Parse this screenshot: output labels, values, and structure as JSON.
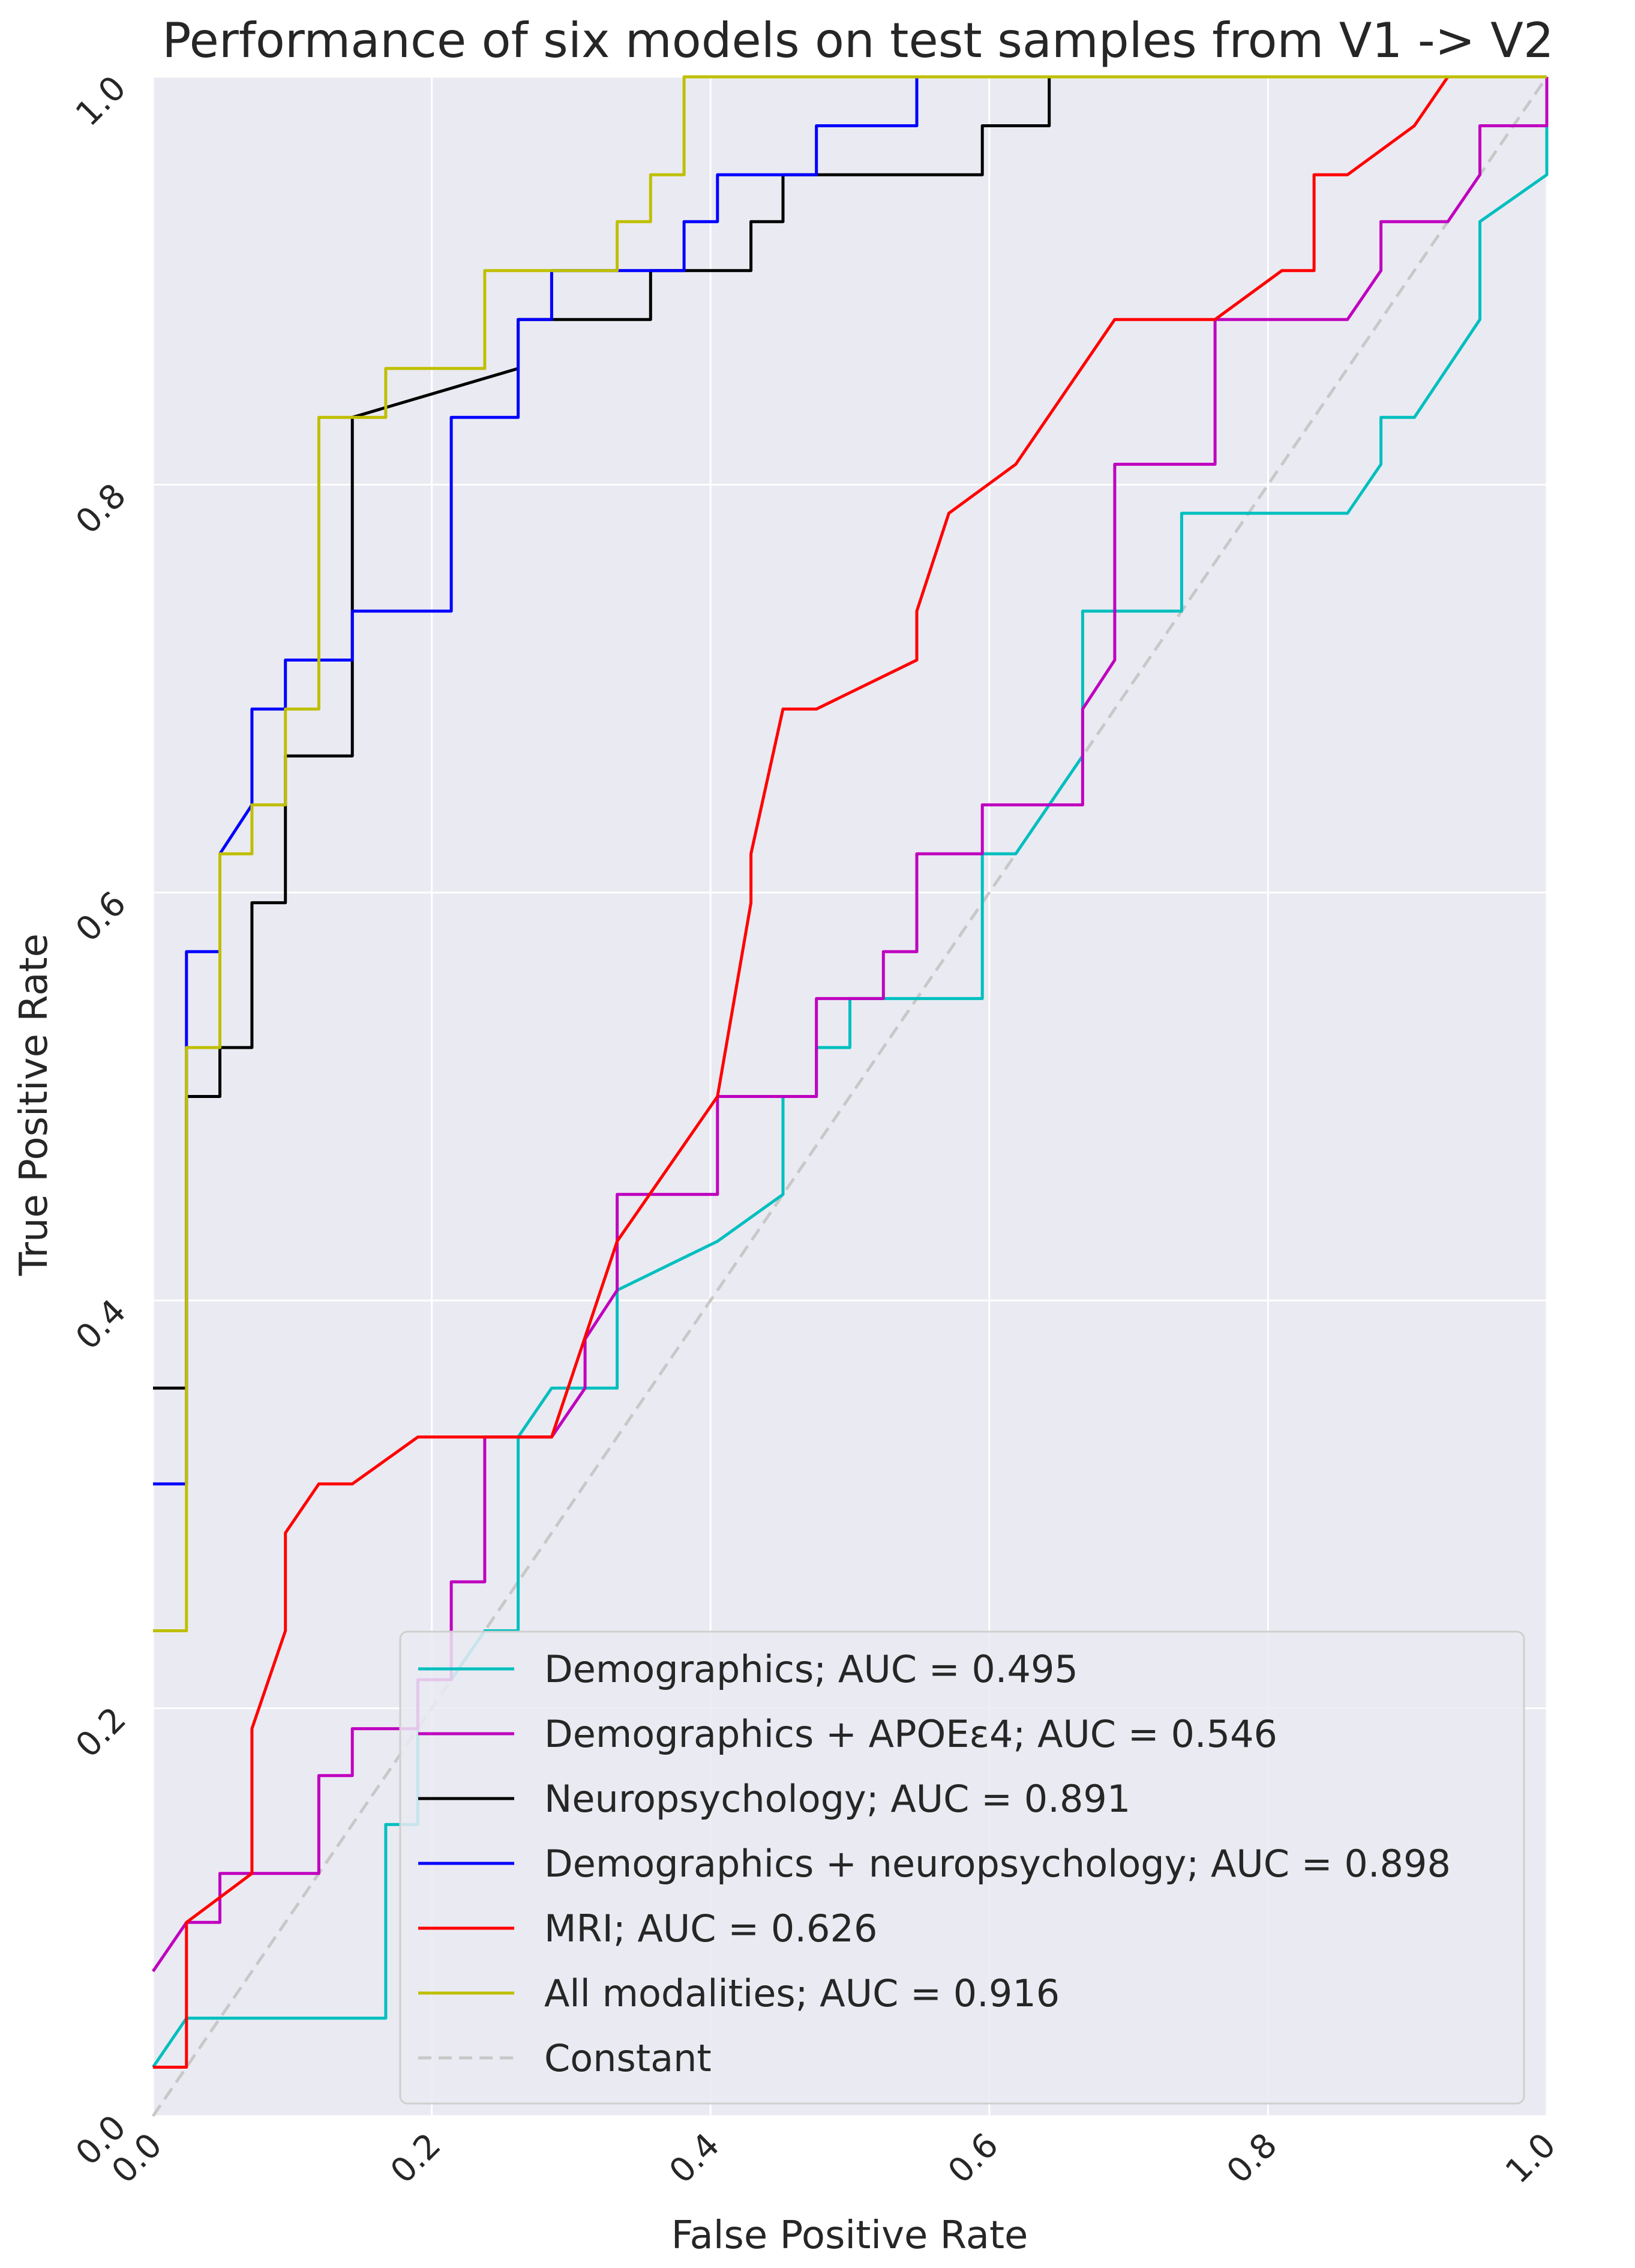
{
  "chart_data": {
    "type": "line",
    "title": "Performance of six models on test samples from V1 -> V2",
    "xlabel": "False Positive Rate",
    "ylabel": "True Positive Rate",
    "xlim": [
      0.0,
      1.0
    ],
    "ylim": [
      0.0,
      1.0
    ],
    "xticks": [
      "0.0",
      "0.2",
      "0.4",
      "0.6",
      "0.8",
      "1.0"
    ],
    "yticks": [
      "0.0",
      "0.2",
      "0.4",
      "0.6",
      "0.8",
      "1.0"
    ],
    "grid": true,
    "background": "#eaeaf2",
    "legend_position": "lower-right",
    "series": [
      {
        "name": "Demographics; AUC = 0.495",
        "color": "#00bfbf",
        "dash": "solid",
        "x": [
          0.0,
          0.024,
          0.167,
          0.167,
          0.19,
          0.19,
          0.214,
          0.238,
          0.262,
          0.262,
          0.286,
          0.333,
          0.333,
          0.405,
          0.452,
          0.452,
          0.476,
          0.476,
          0.5,
          0.5,
          0.595,
          0.595,
          0.619,
          0.667,
          0.667,
          0.738,
          0.738,
          0.857,
          0.881,
          0.881,
          0.905,
          0.952,
          0.952,
          1.0,
          1.0
        ],
        "y": [
          0.024,
          0.048,
          0.048,
          0.143,
          0.143,
          0.214,
          0.214,
          0.238,
          0.238,
          0.333,
          0.357,
          0.357,
          0.405,
          0.429,
          0.452,
          0.5,
          0.5,
          0.524,
          0.524,
          0.548,
          0.548,
          0.619,
          0.619,
          0.667,
          0.738,
          0.738,
          0.786,
          0.786,
          0.81,
          0.833,
          0.833,
          0.881,
          0.929,
          0.952,
          1.0
        ]
      },
      {
        "name": "Demographics + APOEε4; AUC = 0.546",
        "color": "#bf00bf",
        "dash": "solid",
        "x": [
          0.0,
          0.024,
          0.048,
          0.048,
          0.119,
          0.119,
          0.143,
          0.143,
          0.19,
          0.19,
          0.214,
          0.214,
          0.238,
          0.238,
          0.286,
          0.31,
          0.31,
          0.333,
          0.333,
          0.405,
          0.405,
          0.476,
          0.476,
          0.524,
          0.524,
          0.548,
          0.548,
          0.595,
          0.595,
          0.667,
          0.667,
          0.69,
          0.69,
          0.762,
          0.762,
          0.857,
          0.881,
          0.881,
          0.929,
          0.952,
          0.952,
          1.0,
          1.0
        ],
        "y": [
          0.071,
          0.095,
          0.095,
          0.119,
          0.119,
          0.167,
          0.167,
          0.19,
          0.19,
          0.214,
          0.214,
          0.262,
          0.262,
          0.333,
          0.333,
          0.357,
          0.381,
          0.405,
          0.452,
          0.452,
          0.5,
          0.5,
          0.548,
          0.548,
          0.571,
          0.571,
          0.619,
          0.619,
          0.643,
          0.643,
          0.69,
          0.714,
          0.81,
          0.81,
          0.881,
          0.881,
          0.905,
          0.929,
          0.929,
          0.952,
          0.976,
          0.976,
          1.0
        ]
      },
      {
        "name": "Neuropsychology; AUC = 0.891",
        "color": "#000000",
        "dash": "solid",
        "x": [
          0.0,
          0.024,
          0.024,
          0.048,
          0.048,
          0.071,
          0.071,
          0.095,
          0.095,
          0.143,
          0.143,
          0.262,
          0.262,
          0.357,
          0.357,
          0.429,
          0.429,
          0.452,
          0.452,
          0.595,
          0.595,
          0.643,
          0.643,
          1.0
        ],
        "y": [
          0.357,
          0.357,
          0.5,
          0.5,
          0.524,
          0.524,
          0.595,
          0.595,
          0.667,
          0.667,
          0.833,
          0.857,
          0.881,
          0.881,
          0.905,
          0.905,
          0.929,
          0.929,
          0.952,
          0.952,
          0.976,
          0.976,
          1.0,
          1.0
        ]
      },
      {
        "name": "Demographics + neuropsychology; AUC = 0.898",
        "color": "#0000ff",
        "dash": "solid",
        "x": [
          0.0,
          0.024,
          0.024,
          0.048,
          0.048,
          0.071,
          0.071,
          0.095,
          0.095,
          0.143,
          0.143,
          0.214,
          0.214,
          0.262,
          0.262,
          0.286,
          0.286,
          0.381,
          0.381,
          0.405,
          0.405,
          0.476,
          0.476,
          0.548,
          0.548,
          1.0
        ],
        "y": [
          0.31,
          0.31,
          0.571,
          0.571,
          0.619,
          0.643,
          0.69,
          0.69,
          0.714,
          0.714,
          0.738,
          0.738,
          0.833,
          0.833,
          0.881,
          0.881,
          0.905,
          0.905,
          0.929,
          0.929,
          0.952,
          0.952,
          0.976,
          0.976,
          1.0,
          1.0
        ]
      },
      {
        "name": "MRI; AUC = 0.626",
        "color": "#ff0000",
        "dash": "solid",
        "x": [
          0.0,
          0.024,
          0.024,
          0.071,
          0.071,
          0.095,
          0.095,
          0.119,
          0.143,
          0.19,
          0.286,
          0.333,
          0.405,
          0.429,
          0.429,
          0.452,
          0.476,
          0.548,
          0.548,
          0.571,
          0.619,
          0.69,
          0.762,
          0.81,
          0.833,
          0.833,
          0.857,
          0.905,
          0.929,
          1.0
        ],
        "y": [
          0.024,
          0.024,
          0.095,
          0.119,
          0.19,
          0.238,
          0.286,
          0.31,
          0.31,
          0.333,
          0.333,
          0.429,
          0.5,
          0.595,
          0.619,
          0.69,
          0.69,
          0.714,
          0.738,
          0.786,
          0.81,
          0.881,
          0.881,
          0.905,
          0.905,
          0.952,
          0.952,
          0.976,
          1.0,
          1.0
        ]
      },
      {
        "name": "All modalities; AUC = 0.916",
        "color": "#bfbf00",
        "dash": "solid",
        "x": [
          0.0,
          0.024,
          0.024,
          0.048,
          0.048,
          0.071,
          0.071,
          0.095,
          0.095,
          0.119,
          0.119,
          0.167,
          0.167,
          0.238,
          0.238,
          0.333,
          0.333,
          0.357,
          0.357,
          0.381,
          0.381,
          1.0
        ],
        "y": [
          0.238,
          0.238,
          0.524,
          0.524,
          0.619,
          0.619,
          0.643,
          0.643,
          0.69,
          0.69,
          0.833,
          0.833,
          0.857,
          0.857,
          0.905,
          0.905,
          0.929,
          0.929,
          0.952,
          0.952,
          1.0,
          1.0
        ]
      },
      {
        "name": "Constant",
        "color": "#c8c8c8",
        "dash": "dashed",
        "x": [
          0.0,
          1.0
        ],
        "y": [
          0.0,
          1.0
        ]
      }
    ]
  }
}
